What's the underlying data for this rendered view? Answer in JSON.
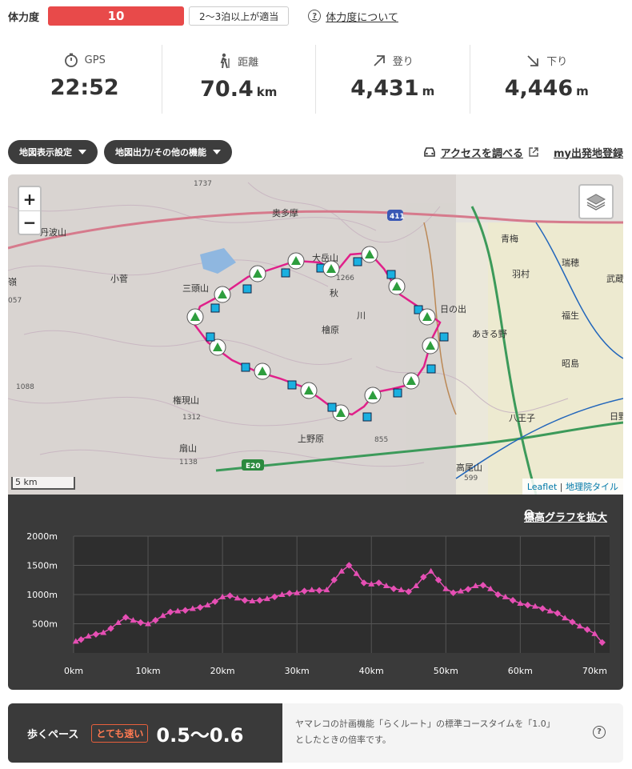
{
  "fitness": {
    "label": "体力度",
    "level": "10",
    "note": "2〜3泊以上が適当",
    "help_link": "体力度について"
  },
  "stats": [
    {
      "label": "GPS",
      "value": "22:52",
      "unit": "",
      "icon": "stopwatch-icon"
    },
    {
      "label": "距離",
      "value": "70.4",
      "unit": "km",
      "icon": "hiker-icon"
    },
    {
      "label": "登り",
      "value": "4,431",
      "unit": "m",
      "icon": "arrow-up-right-icon"
    },
    {
      "label": "下り",
      "value": "4,446",
      "unit": "m",
      "icon": "arrow-down-right-icon"
    }
  ],
  "toolbar": {
    "map_settings": "地図表示設定",
    "map_export": "地図出力/その他の機能",
    "access_link": "アクセスを調べる",
    "my_departure": "my出発地登録"
  },
  "map": {
    "zoom_in": "+",
    "zoom_out": "−",
    "scale": "5 km",
    "attribution_leaflet": "Leaflet",
    "attribution_tiles": "地理院タイル",
    "place_labels": [
      {
        "text": "丹波山"
      },
      {
        "text": "奥多摩"
      },
      {
        "text": "小菅"
      },
      {
        "text": "三頭山"
      },
      {
        "text": "青梅"
      },
      {
        "text": "瑞穂"
      },
      {
        "text": "羽村"
      },
      {
        "text": "武蔵"
      },
      {
        "text": "日の出"
      },
      {
        "text": "あきる野"
      },
      {
        "text": "福生"
      },
      {
        "text": "昭島"
      },
      {
        "text": "檜原"
      },
      {
        "text": "八王子"
      },
      {
        "text": "権現山"
      },
      {
        "text": "扇山"
      },
      {
        "text": "上野原"
      },
      {
        "text": "大岳山"
      },
      {
        "text": "秋"
      },
      {
        "text": "川"
      },
      {
        "text": "嶺"
      },
      {
        "text": "日野"
      },
      {
        "text": "高尾山"
      }
    ],
    "elevation_labels": [
      "1737",
      "1088",
      "1312",
      "1138",
      "1266",
      "855",
      "599",
      "057"
    ],
    "road_labels": [
      "411",
      "E20"
    ],
    "colors": {
      "track": "#e0208a",
      "peak": "#2e9e3e",
      "waypoint": "#1ab0e0"
    }
  },
  "elevation": {
    "expand_link": "標高グラフを拡大",
    "chart_data": {
      "type": "line",
      "x_unit": "km",
      "y_unit": "m",
      "x_ticks": [
        "0km",
        "10km",
        "20km",
        "30km",
        "40km",
        "50km",
        "60km",
        "70km"
      ],
      "y_ticks": [
        "500m",
        "1000m",
        "1500m",
        "2000m"
      ],
      "xlim": [
        0,
        72
      ],
      "ylim": [
        0,
        2000
      ],
      "grid": true,
      "color": "#e64fb4",
      "x": [
        0.3,
        1,
        2,
        3,
        4,
        5,
        6,
        7,
        8,
        9,
        10,
        11,
        12,
        13,
        14,
        15,
        16,
        17,
        18,
        19,
        20,
        21,
        22,
        23,
        24,
        25,
        26,
        27,
        28,
        29,
        30,
        31,
        32,
        33,
        34,
        35,
        36,
        37,
        38,
        39,
        40,
        41,
        42,
        43,
        44,
        45,
        46,
        47,
        48,
        49,
        50,
        51,
        52,
        53,
        54,
        55,
        56,
        57,
        58,
        59,
        60,
        61,
        62,
        63,
        64,
        65,
        66,
        67,
        68,
        69,
        70,
        71
      ],
      "y": [
        200,
        230,
        290,
        320,
        350,
        420,
        520,
        610,
        560,
        520,
        500,
        560,
        640,
        700,
        720,
        730,
        760,
        780,
        820,
        880,
        960,
        980,
        940,
        900,
        890,
        900,
        930,
        960,
        1000,
        1020,
        1030,
        1060,
        1080,
        1070,
        1080,
        1250,
        1400,
        1500,
        1360,
        1200,
        1180,
        1200,
        1150,
        1100,
        1080,
        1050,
        1150,
        1300,
        1400,
        1250,
        1100,
        1030,
        1060,
        1090,
        1150,
        1160,
        1100,
        1000,
        960,
        900,
        850,
        820,
        800,
        760,
        720,
        680,
        600,
        530,
        460,
        400,
        330,
        180
      ]
    }
  },
  "pace": {
    "label": "歩くペース",
    "badge": "とても速い",
    "value": "0.5〜0.6",
    "description_line1": "ヤマレコの計画機能「らくルート」の標準コースタイムを「1.0」",
    "description_line2": "としたときの倍率です。"
  }
}
